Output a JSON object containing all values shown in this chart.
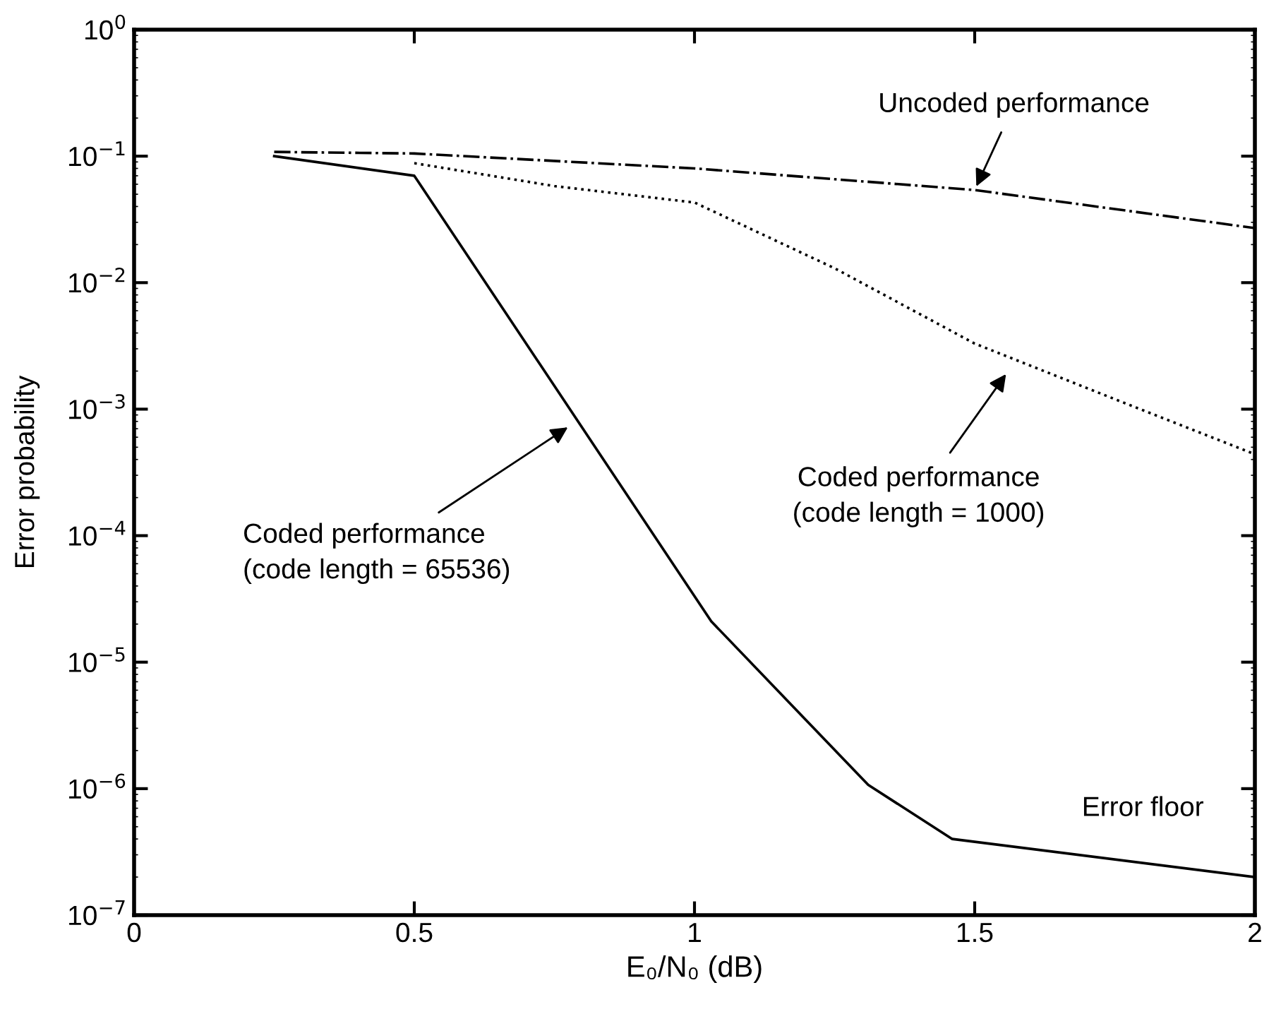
{
  "chart_data": {
    "type": "line",
    "xlabel": "E₀/N₀ (dB)",
    "ylabel": "Error probability",
    "log": "y",
    "grid": false,
    "xlim": [
      0,
      2
    ],
    "xticks": [
      0,
      0.5,
      1,
      1.5,
      2
    ],
    "ylim": [
      1e-07,
      1
    ],
    "yticks": [
      {
        "value": 1e-07,
        "label": "10$^{−7}$"
      },
      {
        "value": 1e-06,
        "label": "10$^{−6}$"
      },
      {
        "value": 1e-05,
        "label": "10$^{−5}$"
      },
      {
        "value": 0.0001,
        "label": "10$^{−4}$"
      },
      {
        "value": 0.001,
        "label": "10$^{−3}$"
      },
      {
        "value": 0.01,
        "label": "10$^{−2}$"
      },
      {
        "value": 0.1,
        "label": "10$^{−1}$"
      },
      {
        "value": 1,
        "label": "10$^{0}$"
      }
    ],
    "series": [
      {
        "color": "#000000",
        "line_style": "solid",
        "x": [
          0.25,
          0.5,
          1.03,
          1.31,
          1.46,
          2.0
        ],
        "values": [
          0.1,
          0.07,
          2.1e-05,
          1.07e-06,
          4e-07,
          2e-07
        ]
      },
      {
        "color": "#000000",
        "line_style": "dotted",
        "x": [
          0.5,
          0.75,
          1.0,
          1.25,
          1.5,
          1.75,
          2.0
        ],
        "values": [
          0.088,
          0.058,
          0.043,
          0.013,
          0.0033,
          0.0012,
          0.00044
        ]
      },
      {
        "color": "#000000",
        "line_style": "dashdot",
        "x": [
          0.25,
          0.5,
          1.0,
          1.5,
          2.0
        ],
        "values": [
          0.108,
          0.105,
          0.08,
          0.054,
          0.027
        ]
      }
    ],
    "annotations": [
      {
        "text": "Uncoded performance",
        "x": 1.5,
        "y": 0.054
      },
      "Coded performance\n(code length = 1000)",
      "Coded performance\n(code length = 65536)",
      "Error floor"
    ]
  }
}
